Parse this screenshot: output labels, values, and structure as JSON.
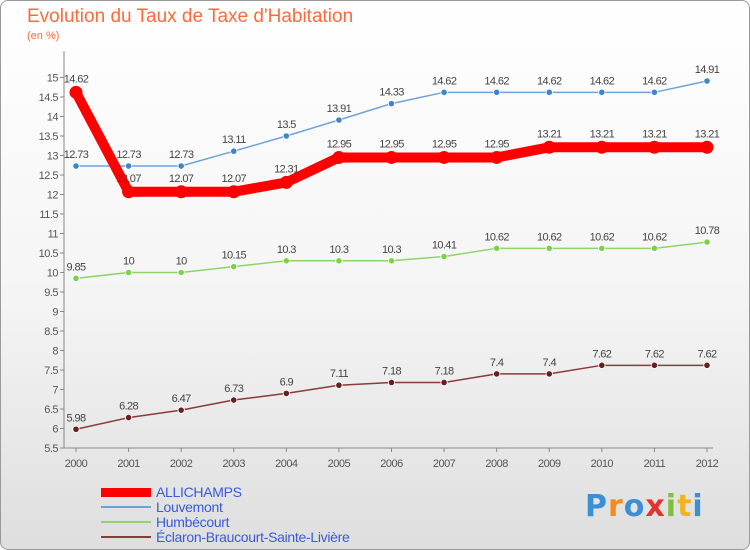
{
  "title": "Evolution du Taux de Taxe d'Habitation",
  "subtitle": "(en %)",
  "logo": "Proxiti",
  "chart_data": {
    "type": "line",
    "x": [
      "2000",
      "2001",
      "2002",
      "2003",
      "2004",
      "2005",
      "2006",
      "2007",
      "2008",
      "2009",
      "2010",
      "2011",
      "2012"
    ],
    "ylim": [
      5.5,
      15.5
    ],
    "yticks": [
      5.5,
      6,
      6.5,
      7,
      7.5,
      8,
      8.5,
      9,
      9.5,
      10,
      10.5,
      11,
      11.5,
      12,
      12.5,
      13,
      13.5,
      14,
      14.5,
      15
    ],
    "grid": false,
    "legend_position": "bottom-left",
    "series": [
      {
        "name": "ALLICHAMPS",
        "color": "#ff0000",
        "thick": true,
        "values": [
          14.62,
          12.07,
          12.07,
          12.07,
          12.31,
          12.95,
          12.95,
          12.95,
          12.95,
          13.21,
          13.21,
          13.21,
          13.21
        ],
        "labels": [
          "14.62",
          "12.07",
          "12.07",
          "12.07",
          "12.31",
          "12.95",
          "12.95",
          "12.95",
          "12.95",
          "13.21",
          "13.21",
          "13.21",
          "13.21"
        ]
      },
      {
        "name": "Louvemont",
        "color": "#6ea3d8",
        "point": "#3d86c6",
        "thick": false,
        "values": [
          12.73,
          12.73,
          12.73,
          13.11,
          13.5,
          13.91,
          14.33,
          14.62,
          14.62,
          14.62,
          14.62,
          14.62,
          14.91
        ],
        "labels": [
          "12.73",
          "12.73",
          "12.73",
          "13.11",
          "13.5",
          "13.91",
          "14.33",
          "14.62",
          "14.62",
          "14.62",
          "14.62",
          "14.62",
          "14.91"
        ]
      },
      {
        "name": "Humbécourt",
        "color": "#8fd46a",
        "point": "#7cd04a",
        "thick": false,
        "values": [
          9.85,
          10,
          10,
          10.15,
          10.3,
          10.3,
          10.3,
          10.41,
          10.62,
          10.62,
          10.62,
          10.62,
          10.78
        ],
        "labels": [
          "9.85",
          "10",
          "10",
          "10.15",
          "10.3",
          "10.3",
          "10.3",
          "10.41",
          "10.62",
          "10.62",
          "10.62",
          "10.62",
          "10.78"
        ]
      },
      {
        "name": "Éclaron-Braucourt-Sainte-Livière",
        "color": "#8b3a3a",
        "point": "#6a1f1f",
        "thick": false,
        "values": [
          5.98,
          6.28,
          6.47,
          6.73,
          6.9,
          7.11,
          7.18,
          7.18,
          7.4,
          7.4,
          7.62,
          7.62,
          7.62
        ],
        "labels": [
          "5.98",
          "6.28",
          "6.47",
          "6.73",
          "6.9",
          "7.11",
          "7.18",
          "7.18",
          "7.4",
          "7.4",
          "7.62",
          "7.62",
          "7.62"
        ]
      }
    ]
  }
}
